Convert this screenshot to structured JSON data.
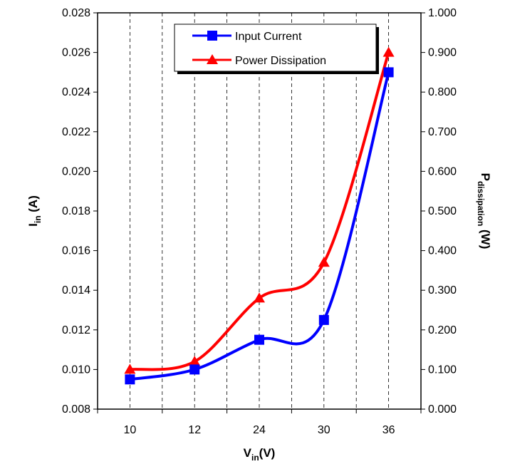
{
  "chart_data": {
    "type": "line",
    "categories": [
      "10",
      "12",
      "24",
      "30",
      "36"
    ],
    "left_axis": {
      "label_main": "I",
      "label_sub": "in",
      "label_suffix": " (A)",
      "range": [
        0.008,
        0.028
      ],
      "ticks": [
        "0.008",
        "0.010",
        "0.012",
        "0.014",
        "0.016",
        "0.018",
        "0.020",
        "0.022",
        "0.024",
        "0.026",
        "0.028"
      ]
    },
    "right_axis": {
      "label_main": "P",
      "label_sub": "dissipation",
      "label_suffix": " (W)",
      "range": [
        0,
        1
      ],
      "ticks": [
        "0.000",
        "0.100",
        "0.200",
        "0.300",
        "0.400",
        "0.500",
        "0.600",
        "0.700",
        "0.800",
        "0.900",
        "1.000"
      ]
    },
    "x_axis": {
      "label_main": "V",
      "label_sub": "in",
      "label_suffix": "(V)"
    },
    "series": [
      {
        "name": "Input Current",
        "axis": "left",
        "color": "#0000ff",
        "marker": "square",
        "values": [
          0.0095,
          0.01,
          0.0115,
          0.0125,
          0.025
        ]
      },
      {
        "name": "Power Dissipation",
        "axis": "right",
        "color": "#ff0000",
        "marker": "triangle",
        "values": [
          0.1,
          0.12,
          0.28,
          0.37,
          0.9
        ]
      }
    ],
    "grid": "vertical dashed",
    "legend_position": "top-center"
  }
}
